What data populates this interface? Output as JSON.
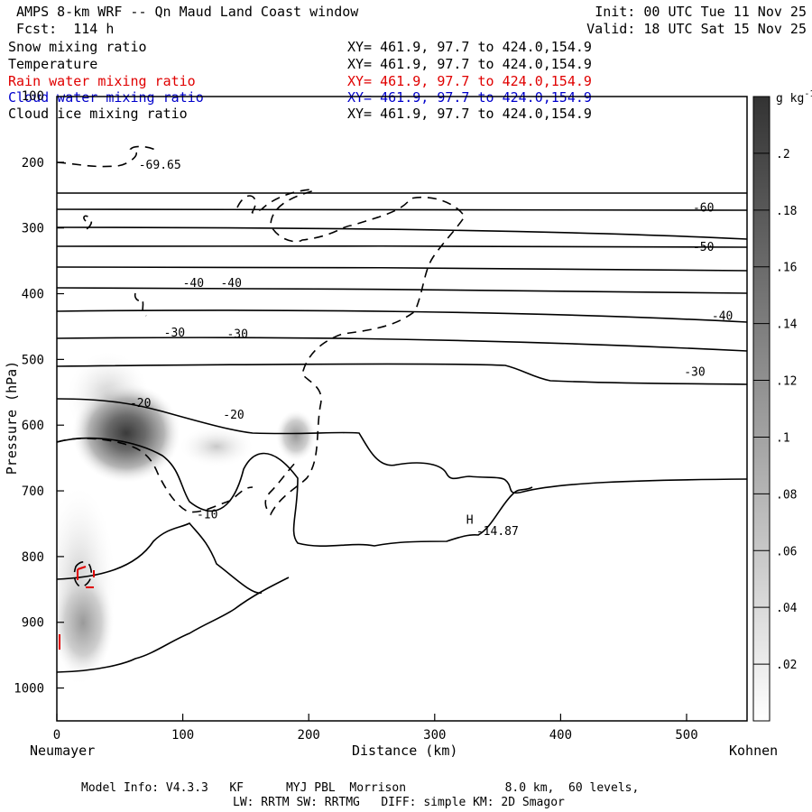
{
  "header": {
    "title": "AMPS 8-km WRF -- Qn Maud Land Coast window",
    "forecast": "Fcst:  114 h",
    "init": "Init: 00 UTC Tue 11 Nov 25",
    "valid": "Valid: 18 UTC Sat 15 Nov 25"
  },
  "colors": {
    "temperature": "#000000",
    "rain": "#e00000",
    "cloud_water": "#0000cc",
    "shading_dark": "#444444"
  },
  "chart_data": {
    "type": "contour-cross-section",
    "xlabel": "Distance (km)",
    "ylabel": "Pressure (hPa)",
    "xlim": [
      0,
      548
    ],
    "ylim": [
      1050,
      100
    ],
    "x_ticks": [
      0,
      100,
      200,
      300,
      400,
      500
    ],
    "y_ticks": [
      200,
      300,
      400,
      500,
      600,
      700,
      800,
      900,
      1000
    ],
    "y_ticks_labeled": [
      "200",
      "300",
      "400",
      "500",
      "600",
      "700",
      "800",
      "900",
      "1000"
    ],
    "y_top_label": "100",
    "left_endpoint": "Neumayer",
    "right_endpoint": "Kohnen",
    "fields": [
      {
        "name": "Snow mixing ratio",
        "xy": "XY= 461.9, 97.7 to 424.0,154.9",
        "color": "#000000"
      },
      {
        "name": "Temperature",
        "xy": "XY= 461.9, 97.7 to 424.0,154.9",
        "color": "#000000"
      },
      {
        "name": "Rain water mixing ratio",
        "xy": "XY= 461.9, 97.7 to 424.0,154.9",
        "color": "#e00000"
      },
      {
        "name": "Cloud water mixing ratio",
        "xy": "XY= 461.9, 97.7 to 424.0,154.9",
        "color": "#0000cc"
      },
      {
        "name": "Cloud ice mixing ratio",
        "xy": "XY= 461.9, 97.7 to 424.0,154.9",
        "color": "#000000"
      }
    ],
    "colorbar": {
      "unit": "g kg-1",
      "ticks": [
        ".02",
        ".04",
        ".06",
        ".08",
        ".1",
        ".12",
        ".14",
        ".16",
        ".18",
        ".2"
      ],
      "range": [
        0,
        0.22
      ]
    },
    "temperature_labels": [
      {
        "text": "-60",
        "x": 505,
        "p": 275
      },
      {
        "text": "-50",
        "x": 505,
        "p": 335
      },
      {
        "text": "-40",
        "x": 100,
        "p": 390
      },
      {
        "text": "-40",
        "x": 130,
        "p": 390
      },
      {
        "text": "-40",
        "x": 520,
        "p": 440
      },
      {
        "text": "-30",
        "x": 85,
        "p": 465
      },
      {
        "text": "-30",
        "x": 135,
        "p": 467
      },
      {
        "text": "-30",
        "x": 498,
        "p": 525
      },
      {
        "text": "-20",
        "x": 58,
        "p": 572
      },
      {
        "text": "-20",
        "x": 132,
        "p": 590
      },
      {
        "text": "-10",
        "x": 111,
        "p": 742
      }
    ],
    "annotations": [
      {
        "text": "-69.65",
        "x": 65,
        "p": 210
      },
      {
        "text": "H",
        "x": 325,
        "p": 750
      },
      {
        "text": "-14.87",
        "x": 333,
        "p": 767
      }
    ]
  },
  "footer": {
    "line1": "Model Info: V4.3.3   KF      MYJ PBL  Morrison              8.0 km,  60 levels,",
    "line2": "LW: RRTM SW: RRTMG   DIFF: simple KM: 2D Smagor"
  }
}
